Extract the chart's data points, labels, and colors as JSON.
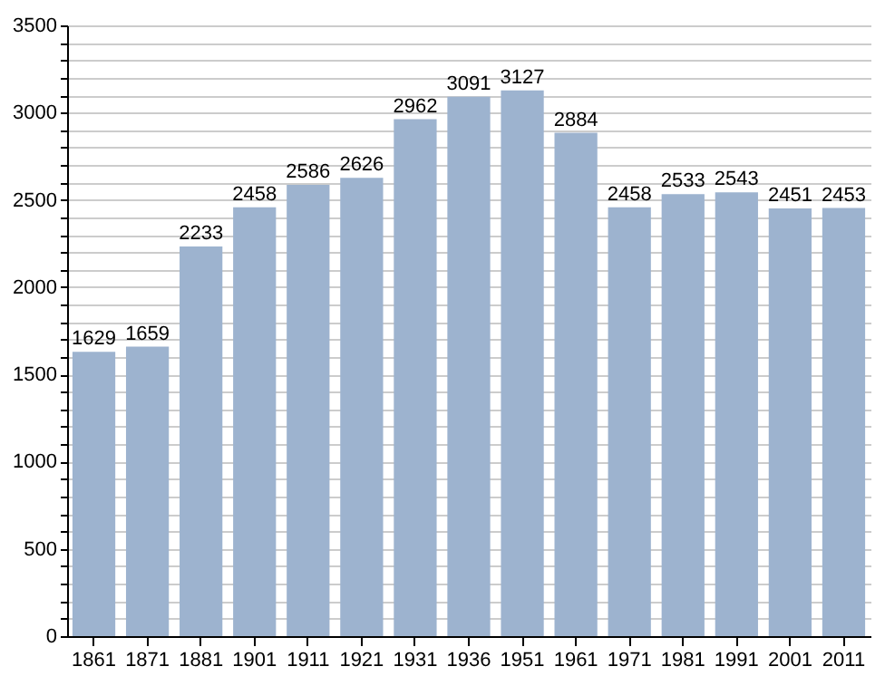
{
  "chart_data": {
    "type": "bar",
    "categories": [
      "1861",
      "1871",
      "1881",
      "1901",
      "1911",
      "1921",
      "1931",
      "1936",
      "1951",
      "1961",
      "1971",
      "1981",
      "1991",
      "2001",
      "2011"
    ],
    "values": [
      1629,
      1659,
      2233,
      2458,
      2586,
      2626,
      2962,
      3091,
      3127,
      2884,
      2458,
      2533,
      2543,
      2451,
      2453
    ],
    "color": "#9db3cf",
    "data_labels": true,
    "grid": "y",
    "ylim": [
      0,
      3500
    ],
    "yticks": [
      0,
      {
        "value": 100,
        "label": null
      },
      {
        "value": 200,
        "label": null
      },
      {
        "value": 300,
        "label": null
      },
      {
        "value": 400,
        "label": null
      },
      500,
      {
        "value": 600,
        "label": null
      },
      {
        "value": 700,
        "label": null
      },
      {
        "value": 800,
        "label": null
      },
      {
        "value": 900,
        "label": null
      },
      1000,
      {
        "value": 1100,
        "label": null
      },
      {
        "value": 1200,
        "label": null
      },
      {
        "value": 1300,
        "label": null
      },
      {
        "value": 1400,
        "label": null
      },
      1500,
      {
        "value": 1600,
        "label": null
      },
      {
        "value": 1700,
        "label": null
      },
      {
        "value": 1800,
        "label": null
      },
      {
        "value": 1900,
        "label": null
      },
      2000,
      {
        "value": 2100,
        "label": null
      },
      {
        "value": 2200,
        "label": null
      },
      {
        "value": 2300,
        "label": null
      },
      {
        "value": 2400,
        "label": null
      },
      2500,
      {
        "value": 2600,
        "label": null
      },
      {
        "value": 2700,
        "label": null
      },
      {
        "value": 2800,
        "label": null
      },
      {
        "value": 2900,
        "label": null
      },
      3000,
      {
        "value": 3100,
        "label": null
      },
      {
        "value": 3200,
        "label": null
      },
      {
        "value": 3300,
        "label": null
      },
      {
        "value": 3400,
        "label": null
      },
      3500
    ]
  }
}
